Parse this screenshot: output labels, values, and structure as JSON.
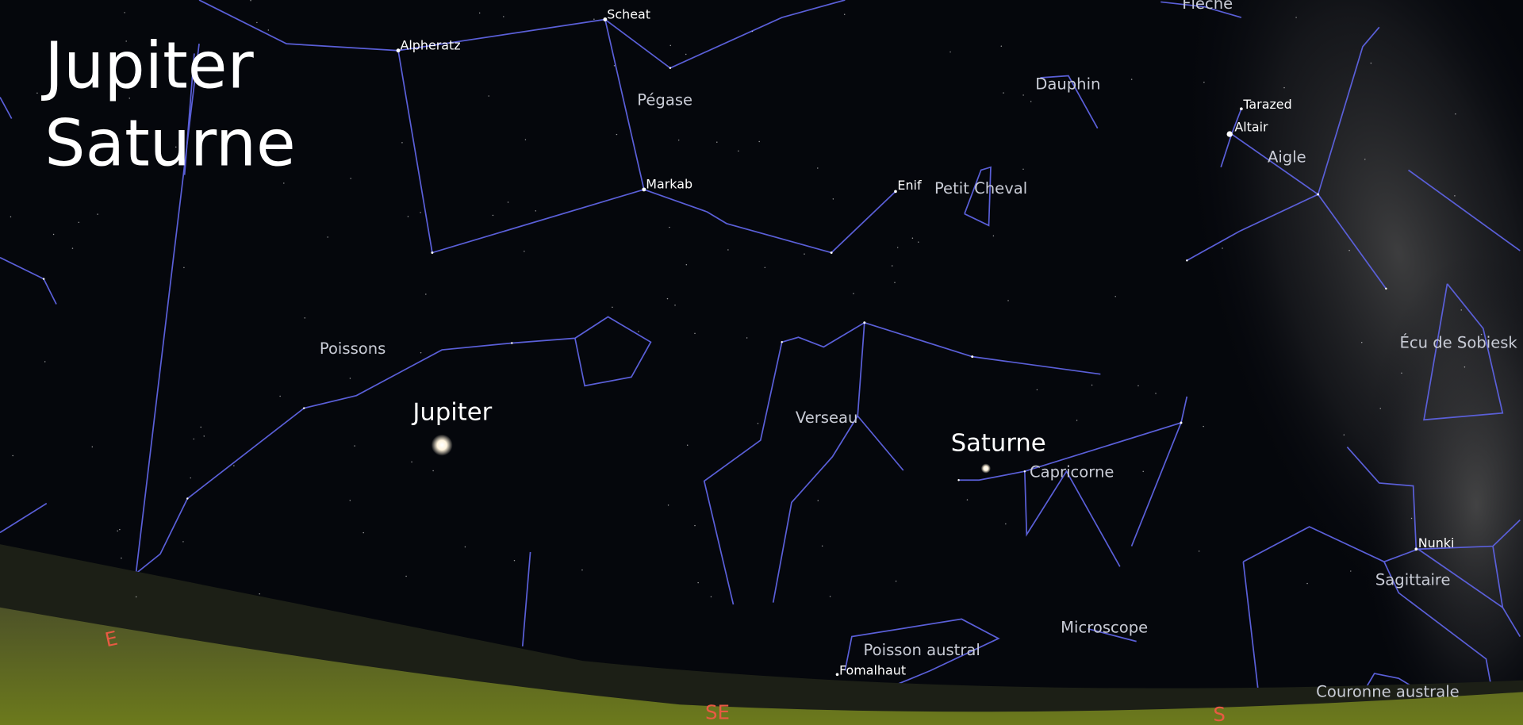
{
  "title": [
    "Jupiter",
    "Saturne"
  ],
  "planets": [
    {
      "label": "Jupiter"
    },
    {
      "label": "Saturne"
    }
  ],
  "stars": [
    {
      "label": "Scheat"
    },
    {
      "label": "Alpheratz"
    },
    {
      "label": "Markab"
    },
    {
      "label": "Enif"
    },
    {
      "label": "Tarazed"
    },
    {
      "label": "Altair"
    },
    {
      "label": "Nunki"
    },
    {
      "label": "Fomalhaut"
    }
  ],
  "constellations": [
    {
      "label": "Pégase"
    },
    {
      "label": "Dauphin"
    },
    {
      "label": "Aigle"
    },
    {
      "label": "Petit Cheval"
    },
    {
      "label": "Poissons"
    },
    {
      "label": "Écu de Sobiesk"
    },
    {
      "label": "Verseau"
    },
    {
      "label": "Capricorne"
    },
    {
      "label": "Sagittaire"
    },
    {
      "label": "Microscope"
    },
    {
      "label": "Poisson austral"
    },
    {
      "label": "Couronne australe"
    },
    {
      "label": "Flèche"
    }
  ],
  "directions": [
    "E",
    "SE",
    "S"
  ]
}
